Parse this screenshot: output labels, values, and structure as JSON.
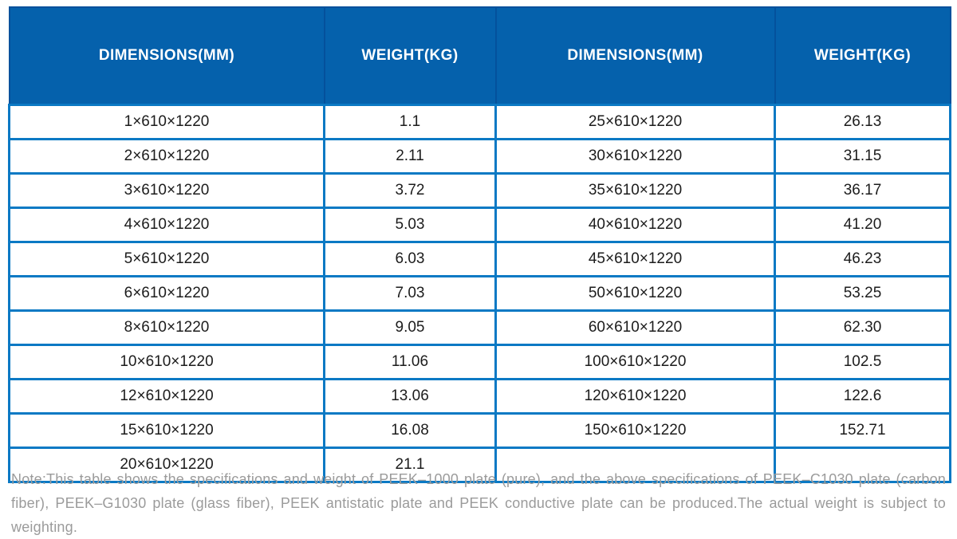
{
  "table": {
    "headers": [
      "DIMENSIONS(MM)",
      "WEIGHT(KG)",
      "DIMENSIONS(MM)",
      "WEIGHT(KG)"
    ],
    "rows": [
      [
        "1×610×1220",
        "1.1",
        "25×610×1220",
        "26.13"
      ],
      [
        "2×610×1220",
        "2.11",
        "30×610×1220",
        "31.15"
      ],
      [
        "3×610×1220",
        "3.72",
        "35×610×1220",
        "36.17"
      ],
      [
        "4×610×1220",
        "5.03",
        "40×610×1220",
        "41.20"
      ],
      [
        "5×610×1220",
        "6.03",
        "45×610×1220",
        "46.23"
      ],
      [
        "6×610×1220",
        "7.03",
        "50×610×1220",
        "53.25"
      ],
      [
        "8×610×1220",
        "9.05",
        "60×610×1220",
        "62.30"
      ],
      [
        "10×610×1220",
        "11.06",
        "100×610×1220",
        "102.5"
      ],
      [
        "12×610×1220",
        "13.06",
        "120×610×1220",
        "122.6"
      ],
      [
        "15×610×1220",
        "16.08",
        "150×610×1220",
        "152.71"
      ],
      [
        "20×610×1220",
        "21.1",
        "",
        ""
      ]
    ]
  },
  "note": "Note:This table shows the specifications and weight of PEEK–1000 plate (pure), and the above specifications of PEEK–C1030 plate (carbon fiber), PEEK–G1030 plate (glass fiber), PEEK antistatic plate and PEEK conductive plate can be produced.The actual weight is subject to weighting.",
  "colors": {
    "page_bg": "#ffffff",
    "header_bg": "#0561ac",
    "header_text": "#ffffff",
    "header_border": "#04519c",
    "cell_border": "#0b79c4",
    "cell_text": "#1c1c1c",
    "note_text": "#9b9b9b"
  }
}
